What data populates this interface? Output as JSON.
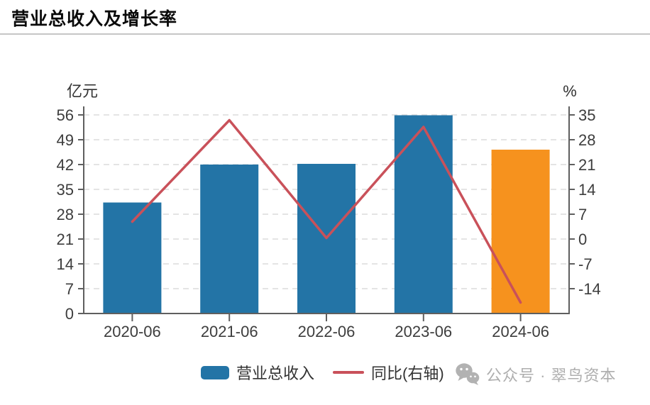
{
  "page": {
    "title": "营业总收入及增长率",
    "watermark_text": "公众号 · 翠鸟资本"
  },
  "chart_data": {
    "type": "combo-bar-line",
    "title": "营业总收入及增长率",
    "categories": [
      "2020-06",
      "2021-06",
      "2022-06",
      "2023-06",
      "2024-06"
    ],
    "series": [
      {
        "name": "营业总收入",
        "type": "bar",
        "axis": "left",
        "unit": "亿元",
        "values": [
          31.3,
          42.0,
          42.2,
          55.9,
          46.2
        ],
        "bar_colors": [
          "#2374A6",
          "#2374A6",
          "#2374A6",
          "#2374A6",
          "#F6921E"
        ]
      },
      {
        "name": "同比(右轴)",
        "type": "line",
        "axis": "right",
        "unit": "%",
        "values": [
          4.9,
          33.5,
          0.3,
          31.6,
          -17.9
        ],
        "color": "#C9515A"
      }
    ],
    "left_axis": {
      "label": "亿元",
      "ticks": [
        56,
        49,
        42,
        35,
        28,
        21,
        14,
        7,
        0
      ],
      "min": 0,
      "max": 56
    },
    "right_axis": {
      "label": "%",
      "ticks": [
        35,
        28,
        21,
        14,
        7,
        0,
        -7,
        -14
      ],
      "plot_min": -21,
      "plot_max": 35
    },
    "grid": "dashed-horizontal",
    "legend_position": "bottom",
    "colors": {
      "axis": "#5f5f5f",
      "tick_text": "#3d3d3d",
      "gridline": "#dcdcdc",
      "watermark": "#aeaeae"
    }
  }
}
